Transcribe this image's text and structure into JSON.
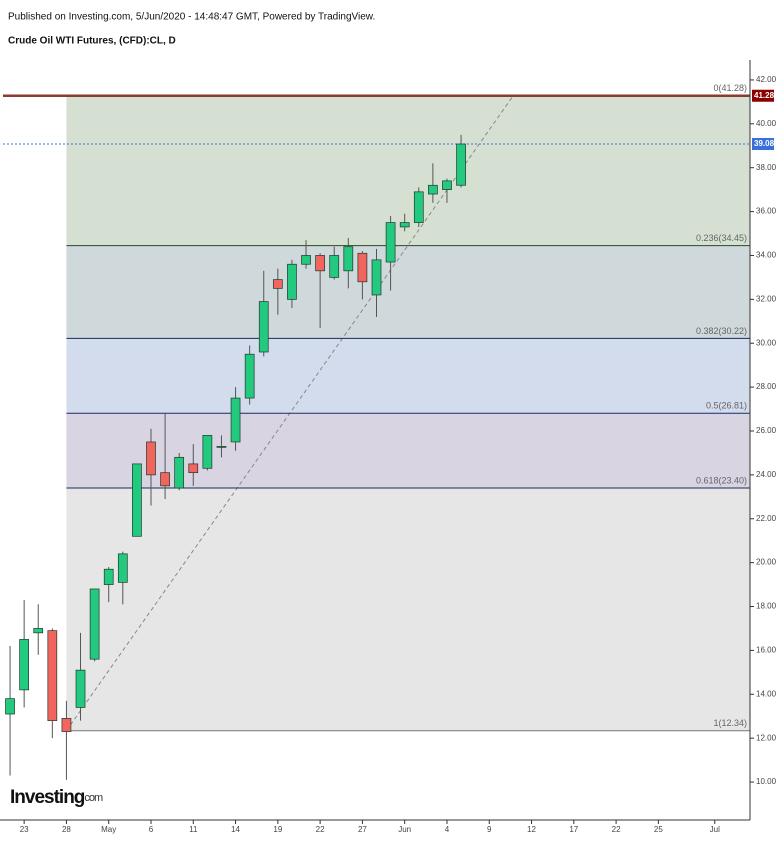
{
  "header": {
    "published": "Published on Investing.com, 5/Jun/2020 - 14:48:47 GMT, Powered by TradingView.",
    "logo": "Investing",
    "logo_suffix": "com"
  },
  "chart_data": {
    "type": "candlestick",
    "title": "Crude Oil WTI Futures, (CFD):CL, D",
    "categories": [
      null,
      "23",
      null,
      null,
      "28",
      null,
      null,
      "May",
      null,
      null,
      "6",
      null,
      null,
      "11",
      null,
      null,
      "14",
      null,
      null,
      "19",
      null,
      null,
      "22",
      null,
      null,
      "27",
      null,
      null,
      "Jun",
      null,
      null,
      "4",
      null,
      null,
      "9",
      null,
      null,
      "12",
      null,
      null,
      "17",
      null,
      null,
      "22",
      null,
      null,
      "25",
      null,
      null,
      null,
      "Jul",
      null,
      null
    ],
    "open": [
      13.1,
      14.2,
      16.8,
      16.9,
      12.9,
      13.4,
      15.6,
      19.0,
      19.1,
      21.2,
      25.5,
      24.1,
      23.4,
      24.5,
      24.3,
      25.3,
      25.5,
      27.5,
      29.6,
      32.9,
      32.0,
      33.6,
      34.0,
      33.0,
      33.3,
      34.1,
      32.2,
      33.7,
      35.3,
      35.5,
      36.8,
      37.0,
      37.2,
      null,
      null,
      null,
      null,
      null,
      null,
      null,
      null,
      null,
      null,
      null,
      null,
      null,
      null,
      null,
      null,
      null,
      null,
      null,
      null
    ],
    "high": [
      16.2,
      18.3,
      18.1,
      17.0,
      13.7,
      16.8,
      18.8,
      19.8,
      20.5,
      24.5,
      26.1,
      26.8,
      25.0,
      25.4,
      25.8,
      25.8,
      28.0,
      29.9,
      33.3,
      33.4,
      33.8,
      34.7,
      34.1,
      34.4,
      34.8,
      34.2,
      34.3,
      35.8,
      35.9,
      37.1,
      38.2,
      37.5,
      39.5,
      null,
      null,
      null,
      null,
      null,
      null,
      null,
      null,
      null,
      null,
      null,
      null,
      null,
      null,
      null,
      null,
      null,
      null,
      null,
      null
    ],
    "low": [
      10.3,
      13.4,
      15.8,
      12.0,
      10.1,
      12.8,
      15.5,
      18.2,
      18.1,
      21.2,
      22.6,
      22.9,
      23.3,
      23.5,
      24.2,
      24.8,
      25.1,
      27.2,
      29.4,
      31.3,
      31.6,
      33.4,
      30.7,
      32.9,
      32.5,
      32.0,
      31.2,
      32.4,
      35.1,
      35.3,
      36.4,
      36.4,
      37.1,
      null,
      null,
      null,
      null,
      null,
      null,
      null,
      null,
      null,
      null,
      null,
      null,
      null,
      null,
      null,
      null,
      null,
      null,
      null,
      null
    ],
    "close": [
      13.8,
      16.5,
      17.0,
      12.8,
      12.3,
      15.1,
      18.8,
      19.7,
      20.4,
      24.5,
      24.0,
      23.5,
      24.8,
      24.1,
      25.8,
      25.3,
      27.5,
      29.5,
      31.9,
      32.5,
      33.6,
      34.0,
      33.3,
      34.0,
      34.4,
      32.8,
      33.8,
      35.5,
      35.5,
      36.9,
      37.2,
      37.4,
      39.08,
      null,
      null,
      null,
      null,
      null,
      null,
      null,
      null,
      null,
      null,
      null,
      null,
      null,
      null,
      null,
      null,
      null,
      null,
      null,
      null
    ],
    "up_color": "#22c97e",
    "down_color": "#f2655f",
    "ylim": [
      8.27,
      43.0
    ],
    "yticks": [
      {
        "value": 10,
        "label": "10.00"
      },
      {
        "value": 12,
        "label": "12.00"
      },
      {
        "value": 14,
        "label": "14.00"
      },
      {
        "value": 16,
        "label": "16.00"
      },
      {
        "value": 18,
        "label": "18.00"
      },
      {
        "value": 20,
        "label": "20.00"
      },
      {
        "value": 22,
        "label": "22.00"
      },
      {
        "value": 24,
        "label": "24.00"
      },
      {
        "value": 26,
        "label": "26.00"
      },
      {
        "value": 28,
        "label": "28.00"
      },
      {
        "value": 30,
        "label": "30.00"
      },
      {
        "value": 32,
        "label": "32.00"
      },
      {
        "value": 34,
        "label": "34.00"
      },
      {
        "value": 36,
        "label": "36.00"
      },
      {
        "value": 38,
        "label": "38.00"
      },
      {
        "value": 40,
        "label": "40.00"
      },
      {
        "value": 42,
        "label": "42.00"
      }
    ],
    "fib_levels": [
      {
        "value": 41.28,
        "label": "0(41.28)",
        "color": "#8b3a2e",
        "fill": "#d6e0d2"
      },
      {
        "value": 34.45,
        "label": "0.236(34.45)",
        "color": "#2a4a2a",
        "fill": "#cfd8da"
      },
      {
        "value": 30.22,
        "label": "0.382(30.22)",
        "color": "#1c2a5a",
        "fill": "#d3dcec"
      },
      {
        "value": 26.81,
        "label": "0.5(26.81)",
        "color": "#1c2a6a",
        "fill": "#d9d4e2"
      },
      {
        "value": 23.4,
        "label": "0.618(23.40)",
        "color": "#1c2a5a",
        "fill": "#e6e6e6"
      },
      {
        "value": 12.34,
        "label": "1(12.34)",
        "color": "#777777"
      }
    ],
    "high_price_color": "#8b0000",
    "last_price": 39.08,
    "last_price_color": "#3a6fd8"
  }
}
